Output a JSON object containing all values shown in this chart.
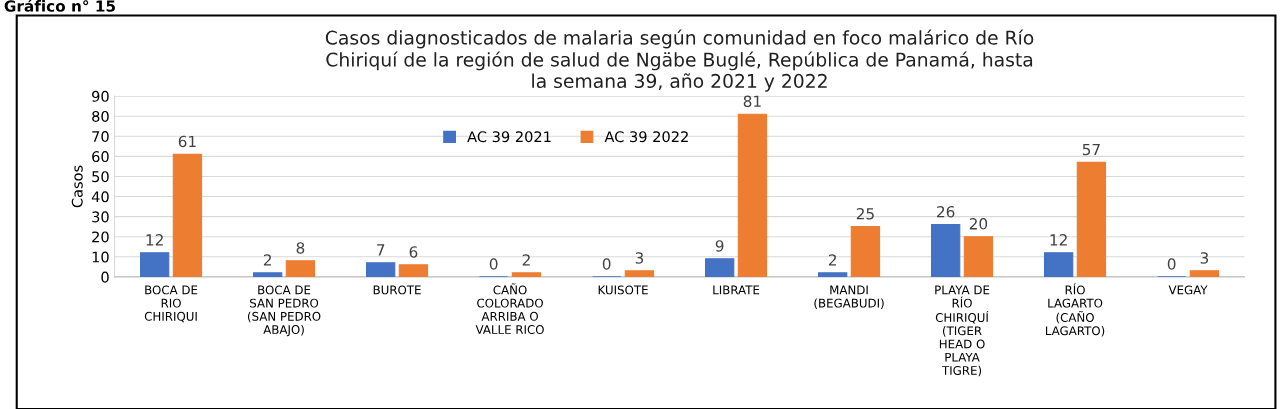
{
  "chart_data": {
    "type": "bar",
    "title": "Casos diagnosticados de malaria según comunidad en foco malárico de Río\nChiriquí de la región de salud de Ngäbe Buglé, República de Panamá, hasta\nla semana 39, año 2021 y 2022",
    "ylabel": "Casos",
    "annotations": [
      "Gráfico n° 15"
    ],
    "categories": [
      "BOCA DE\nRIO\nCHIRIQUI",
      "BOCA DE\nSAN PEDRO\n(SAN PEDRO\nABAJO)",
      "BUROTE",
      "CAÑO\nCOLORADO\nARRIBA O\nVALLE RICO",
      "KUISOTE",
      "LIBRATE",
      "MANDI\n(BEGABUDI)",
      "PLAYA DE\nRÍO\nCHIRIQUÍ\n(TIGER\nHEAD O\nPLAYA\nTIGRE)",
      "RÍO\nLAGARTO\n(CAÑO\nLAGARTO)",
      "VEGAY"
    ],
    "series": [
      {
        "name": "AC 39 2021",
        "color": "#4472c4",
        "values": [
          12,
          2,
          7,
          0,
          0,
          9,
          2,
          26,
          12,
          0
        ]
      },
      {
        "name": "AC 39 2022",
        "color": "#ed7d31",
        "values": [
          61,
          8,
          6,
          2,
          3,
          81,
          25,
          20,
          57,
          3
        ]
      }
    ],
    "ylim": [
      0,
      90
    ],
    "yticks": [
      0,
      10,
      20,
      30,
      40,
      50,
      60,
      70,
      80,
      90
    ],
    "grid": "y",
    "legend": "top",
    "data_labels": true
  }
}
